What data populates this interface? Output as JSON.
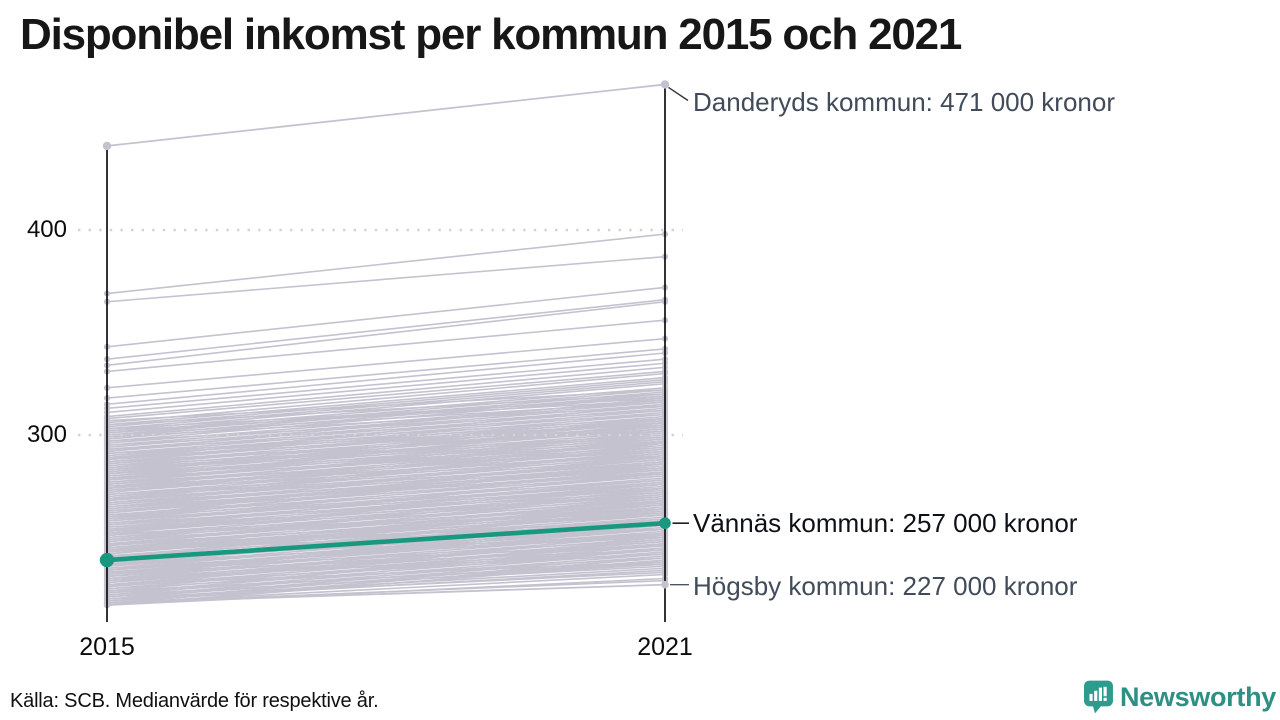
{
  "title": "Disponibel inkomst per kommun 2015 och 2021",
  "source_note": "Källa: SCB. Medianvärde för respektive år.",
  "branding": {
    "name": "Newsworthy",
    "logo_icon": "bar-chart-speech-bubble",
    "color": "#2E8F85",
    "icon_color": "#2E9C8C"
  },
  "colors": {
    "background_line": "#c4c2cf",
    "highlight_line": "#18997f",
    "axis": "#000000",
    "gridline": "#d2d2d7",
    "neutral_annotation_text": "#414b59",
    "highlight_annotation_text": "#0d1117",
    "danderyd_leader": "#31363e",
    "vannas_leader": "#1c2127",
    "hogsby_leader": "#4d5663"
  },
  "chart_data": {
    "type": "line",
    "subtype": "slope",
    "title": "Disponibel inkomst per kommun 2015 och 2021",
    "x_categories": [
      "2015",
      "2021"
    ],
    "y_ticks": [
      300,
      400
    ],
    "y_unit": "tusen kronor (1000 SEK)",
    "ylim": [
      210,
      480
    ],
    "grid": "dotted-horizontal",
    "legend": "none",
    "named_series": [
      {
        "name": "Danderyds kommun",
        "values": [
          441,
          471
        ],
        "style": "neutral",
        "annotation": "Danderyds kommun: 471 000 kronor"
      },
      {
        "name": "Vännäs kommun",
        "values": [
          239,
          257
        ],
        "style": "highlight",
        "annotation": "Vännäs kommun: 257 000 kronor"
      },
      {
        "name": "Högsby kommun",
        "values": [
          218,
          227
        ],
        "style": "neutral",
        "annotation": "Högsby kommun: 227 000 kronor"
      }
    ],
    "background_series": [
      [
        369,
        398
      ],
      [
        365,
        387
      ],
      [
        343,
        372
      ],
      [
        337,
        366
      ],
      [
        334,
        365
      ],
      [
        331,
        356
      ],
      [
        323,
        347
      ],
      [
        318,
        342
      ],
      [
        315,
        340
      ],
      [
        313,
        337
      ],
      [
        311,
        335
      ],
      [
        309,
        333
      ],
      [
        308,
        331
      ],
      [
        306,
        330
      ],
      [
        305,
        328
      ],
      [
        304,
        327
      ],
      [
        303,
        326
      ],
      [
        302,
        325
      ],
      [
        301,
        323
      ],
      [
        300,
        322
      ],
      [
        307,
        322
      ],
      [
        300,
        316
      ],
      [
        303,
        318
      ],
      [
        305,
        320
      ],
      [
        301,
        319
      ],
      [
        302,
        317
      ],
      [
        299,
        321
      ],
      [
        298,
        320
      ],
      [
        297,
        319
      ],
      [
        296,
        317
      ],
      [
        295,
        316
      ],
      [
        294,
        315
      ],
      [
        293,
        314
      ],
      [
        292,
        313
      ],
      [
        291,
        312
      ],
      [
        290,
        311
      ],
      [
        299,
        314
      ],
      [
        297,
        312
      ],
      [
        295,
        310
      ],
      [
        293,
        308
      ],
      [
        291,
        307
      ],
      [
        290,
        306
      ],
      [
        289,
        310
      ],
      [
        288,
        309
      ],
      [
        287,
        308
      ],
      [
        286,
        307
      ],
      [
        285,
        306
      ],
      [
        284,
        305
      ],
      [
        283,
        304
      ],
      [
        282,
        303
      ],
      [
        281,
        302
      ],
      [
        280,
        301
      ],
      [
        289,
        304
      ],
      [
        287,
        302
      ],
      [
        285,
        300
      ],
      [
        283,
        298
      ],
      [
        281,
        297
      ],
      [
        280,
        296
      ],
      [
        288,
        306
      ],
      [
        286,
        303
      ],
      [
        284,
        299
      ],
      [
        282,
        305
      ],
      [
        279,
        300
      ],
      [
        278,
        299
      ],
      [
        277,
        298
      ],
      [
        276,
        297
      ],
      [
        275,
        296
      ],
      [
        274,
        295
      ],
      [
        273,
        294
      ],
      [
        272,
        293
      ],
      [
        271,
        292
      ],
      [
        270,
        291
      ],
      [
        279,
        294
      ],
      [
        277,
        292
      ],
      [
        275,
        290
      ],
      [
        273,
        289
      ],
      [
        271,
        288
      ],
      [
        270,
        286
      ],
      [
        278,
        296
      ],
      [
        276,
        293
      ],
      [
        274,
        291
      ],
      [
        272,
        297
      ],
      [
        269,
        290
      ],
      [
        268,
        289
      ],
      [
        267,
        288
      ],
      [
        266,
        287
      ],
      [
        265,
        286
      ],
      [
        264,
        285
      ],
      [
        263,
        284
      ],
      [
        262,
        283
      ],
      [
        261,
        282
      ],
      [
        260,
        281
      ],
      [
        269,
        284
      ],
      [
        267,
        283
      ],
      [
        265,
        281
      ],
      [
        263,
        280
      ],
      [
        261,
        278
      ],
      [
        260,
        276
      ],
      [
        268,
        287
      ],
      [
        266,
        284
      ],
      [
        264,
        282
      ],
      [
        262,
        286
      ],
      [
        259,
        280
      ],
      [
        258,
        279
      ],
      [
        257,
        278
      ],
      [
        256,
        277
      ],
      [
        255,
        276
      ],
      [
        254,
        275
      ],
      [
        253,
        274
      ],
      [
        252,
        273
      ],
      [
        251,
        272
      ],
      [
        250,
        271
      ],
      [
        259,
        274
      ],
      [
        257,
        272
      ],
      [
        255,
        270
      ],
      [
        253,
        269
      ],
      [
        251,
        268
      ],
      [
        250,
        266
      ],
      [
        258,
        277
      ],
      [
        256,
        274
      ],
      [
        254,
        271
      ],
      [
        252,
        276
      ],
      [
        249,
        270
      ],
      [
        248,
        269
      ],
      [
        247,
        268
      ],
      [
        246,
        267
      ],
      [
        245,
        266
      ],
      [
        244,
        265
      ],
      [
        243,
        264
      ],
      [
        242,
        263
      ],
      [
        241,
        262
      ],
      [
        240,
        261
      ],
      [
        249,
        264
      ],
      [
        247,
        262
      ],
      [
        245,
        261
      ],
      [
        243,
        259
      ],
      [
        241,
        258
      ],
      [
        240,
        256
      ],
      [
        248,
        267
      ],
      [
        246,
        264
      ],
      [
        244,
        262
      ],
      [
        242,
        266
      ],
      [
        239,
        260
      ],
      [
        238,
        259
      ],
      [
        237,
        258
      ],
      [
        236,
        257
      ],
      [
        235,
        256
      ],
      [
        234,
        255
      ],
      [
        233,
        254
      ],
      [
        232,
        253
      ],
      [
        231,
        252
      ],
      [
        230,
        251
      ],
      [
        239,
        254
      ],
      [
        237,
        252
      ],
      [
        235,
        251
      ],
      [
        233,
        249
      ],
      [
        231,
        248
      ],
      [
        230,
        246
      ],
      [
        238,
        257
      ],
      [
        236,
        254
      ],
      [
        234,
        252
      ],
      [
        232,
        256
      ],
      [
        229,
        250
      ],
      [
        228,
        249
      ],
      [
        227,
        248
      ],
      [
        226,
        247
      ],
      [
        225,
        246
      ],
      [
        224,
        245
      ],
      [
        223,
        244
      ],
      [
        222,
        243
      ],
      [
        221,
        242
      ],
      [
        220,
        241
      ],
      [
        229,
        244
      ],
      [
        227,
        242
      ],
      [
        225,
        240
      ],
      [
        223,
        238
      ],
      [
        221,
        237
      ],
      [
        220,
        235
      ],
      [
        228,
        247
      ],
      [
        226,
        244
      ],
      [
        219,
        240
      ],
      [
        218,
        239
      ],
      [
        217,
        238
      ],
      [
        219,
        234
      ],
      [
        218,
        232
      ],
      [
        217,
        230
      ],
      [
        220,
        233
      ],
      [
        222,
        236
      ],
      [
        224,
        237
      ],
      [
        218,
        229
      ],
      [
        268,
        296
      ],
      [
        292,
        318
      ],
      [
        240,
        268
      ],
      [
        260,
        290
      ],
      [
        278,
        306
      ],
      [
        288,
        315
      ],
      [
        253,
        282
      ],
      [
        259,
        286
      ],
      [
        274,
        302
      ],
      [
        281,
        308
      ],
      [
        231,
        258
      ],
      [
        226,
        252
      ],
      [
        246,
        274
      ],
      [
        236,
        264
      ],
      [
        245,
        258
      ],
      [
        235,
        246
      ],
      [
        230,
        242
      ],
      [
        244,
        254
      ],
      [
        238,
        250
      ],
      [
        233,
        244
      ],
      [
        227,
        238
      ],
      [
        252,
        262
      ],
      [
        247,
        256
      ],
      [
        241,
        250
      ]
    ]
  }
}
